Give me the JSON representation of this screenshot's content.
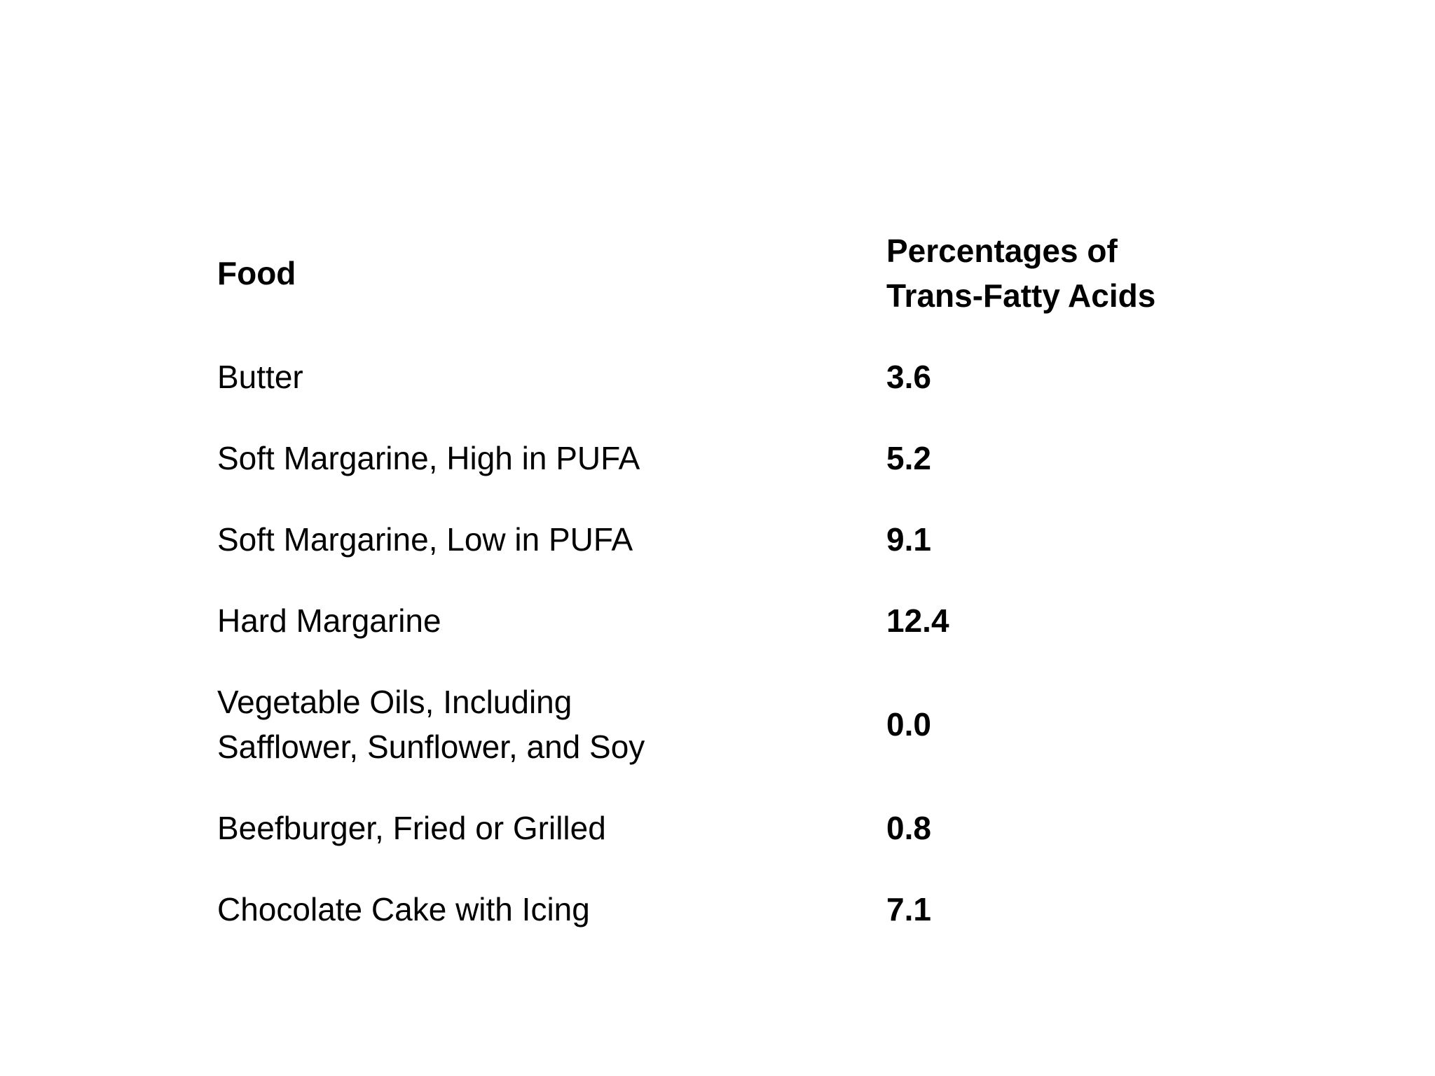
{
  "table": {
    "header": {
      "food": "Food",
      "value": "Percentages of\nTrans-Fatty Acids"
    },
    "rows": [
      {
        "food": "Butter",
        "value": "3.6"
      },
      {
        "food": "Soft Margarine, High in PUFA",
        "value": "5.2"
      },
      {
        "food": "Soft Margarine, Low in PUFA",
        "value": "9.1"
      },
      {
        "food": "Hard Margarine",
        "value": "12.4"
      },
      {
        "food": "Vegetable Oils, Including\nSafflower, Sunflower, and Soy",
        "value": "0.0"
      },
      {
        "food": "Beefburger, Fried or Grilled",
        "value": "0.8"
      },
      {
        "food": "Chocolate Cake with Icing",
        "value": "7.1"
      }
    ],
    "text_color": "#000000",
    "background_color": "#ffffff"
  },
  "chart_data": {
    "type": "table",
    "title": "",
    "columns": [
      "Food",
      "Percentages of Trans-Fatty Acids"
    ],
    "categories": [
      "Butter",
      "Soft Margarine, High in PUFA",
      "Soft Margarine, Low in PUFA",
      "Hard Margarine",
      "Vegetable Oils, Including Safflower, Sunflower, and Soy",
      "Beefburger, Fried or Grilled",
      "Chocolate Cake with Icing"
    ],
    "values": [
      3.6,
      5.2,
      9.1,
      12.4,
      0.0,
      0.8,
      7.1
    ]
  }
}
